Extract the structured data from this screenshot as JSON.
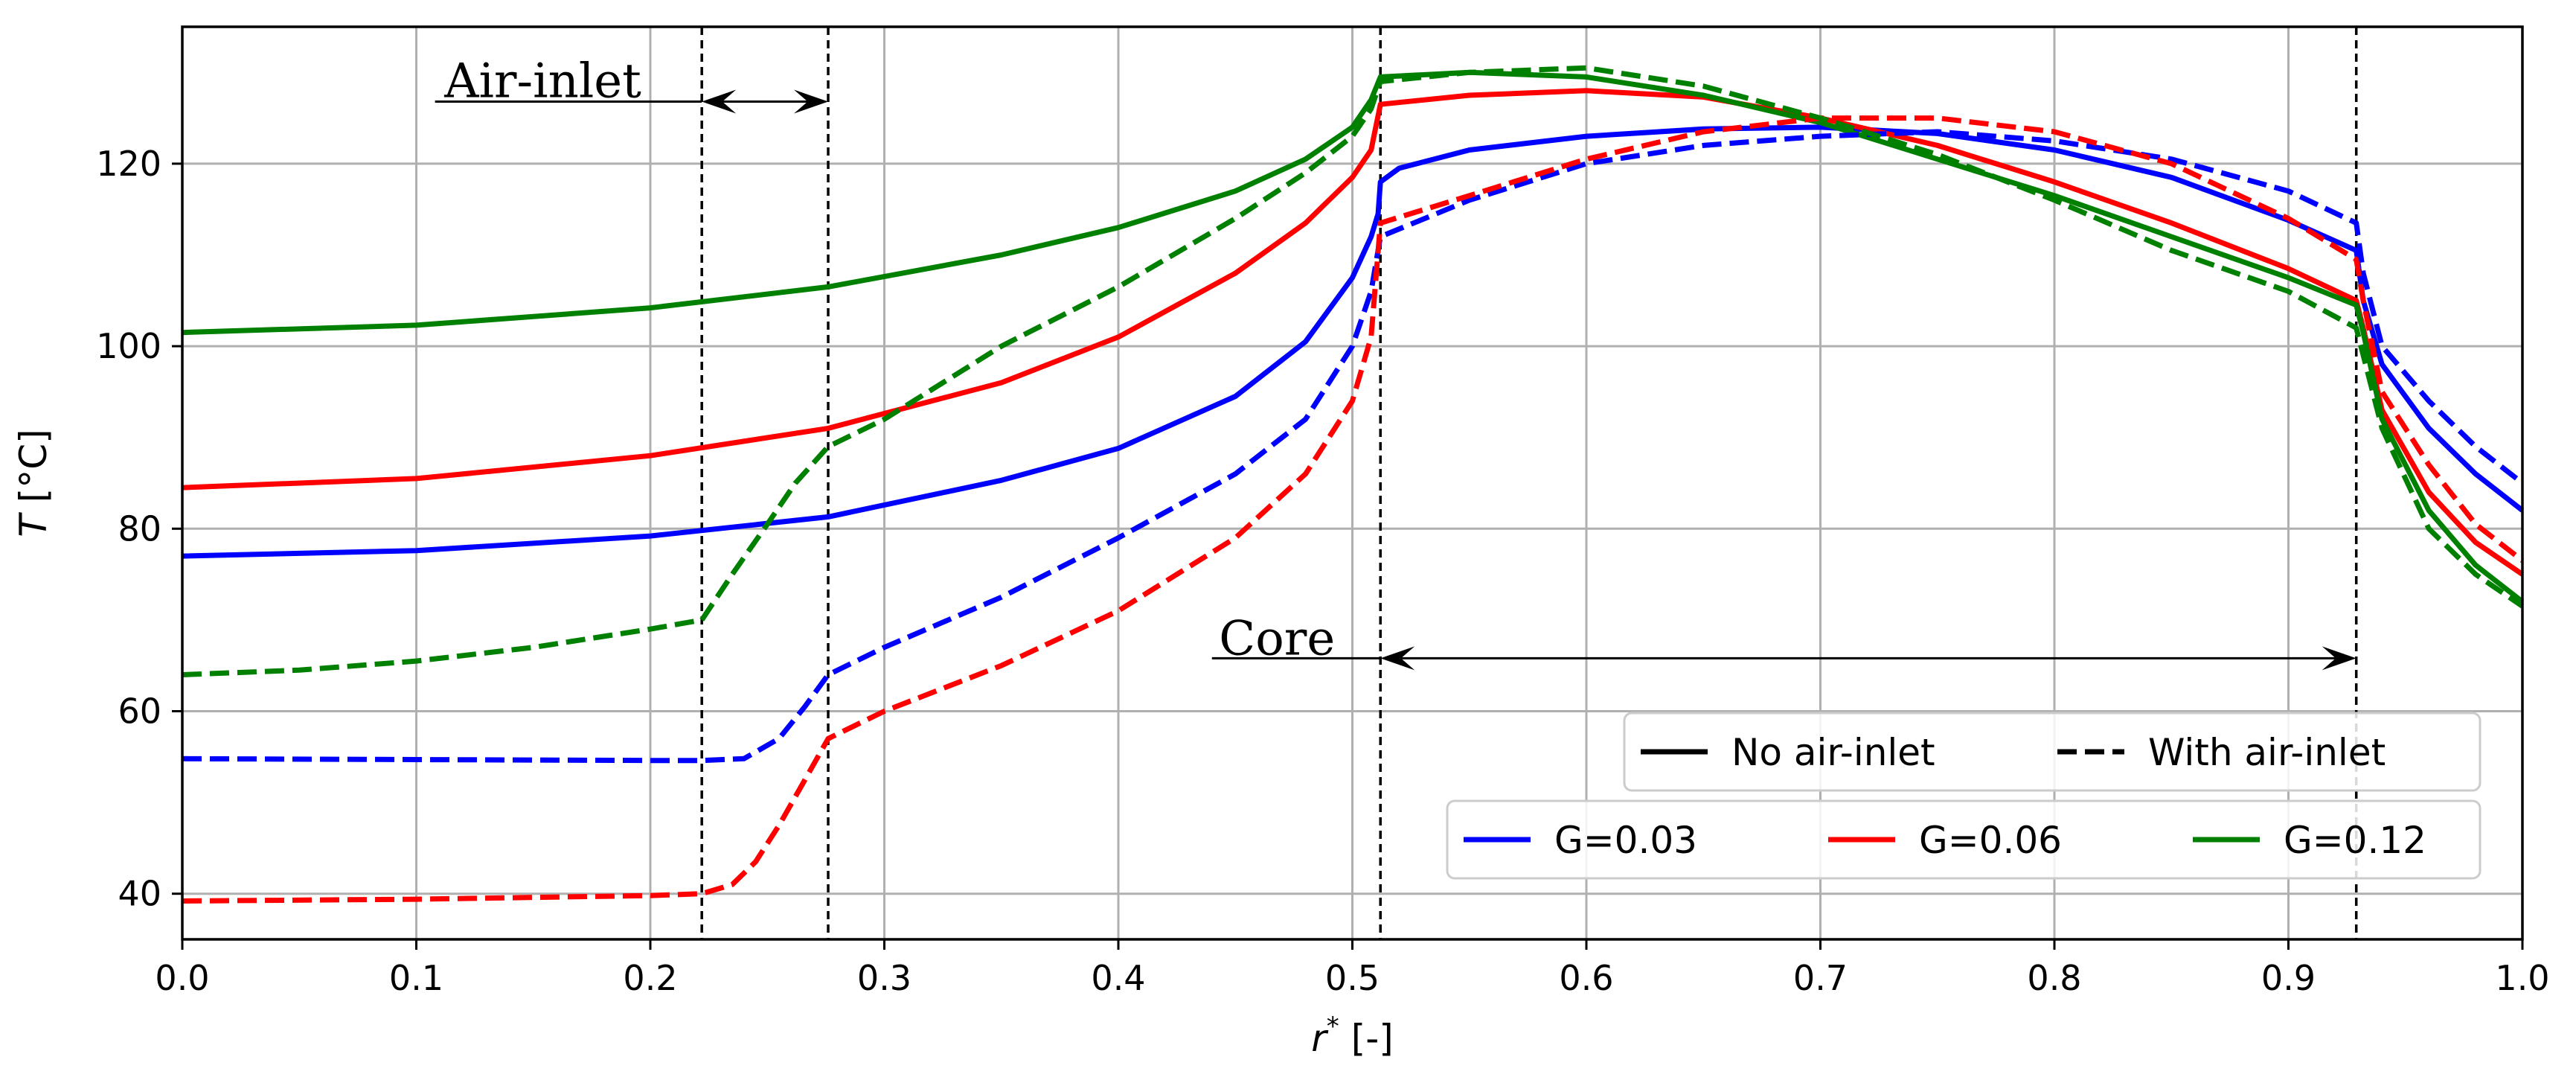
{
  "chart_data": {
    "type": "line",
    "title": "",
    "xlabel_var": "r",
    "xlabel_sup": "*",
    "xlabel_unit": " [-]",
    "ylabel_var": "T",
    "ylabel_unit": " [°C]",
    "xlim": [
      0.0,
      1.0
    ],
    "ylim": [
      35,
      135
    ],
    "grid": true,
    "x_ticks": [
      0.0,
      0.1,
      0.2,
      0.3,
      0.4,
      0.5,
      0.6,
      0.7,
      0.8,
      0.9,
      1.0
    ],
    "x_tick_labels": [
      "0.0",
      "0.1",
      "0.2",
      "0.3",
      "0.4",
      "0.5",
      "0.6",
      "0.7",
      "0.8",
      "0.9",
      "1.0"
    ],
    "y_ticks": [
      40,
      60,
      80,
      100,
      120
    ],
    "y_tick_labels": [
      "40",
      "60",
      "80",
      "100",
      "120"
    ],
    "boundaries": [
      0.222,
      0.276,
      0.512,
      0.929
    ],
    "annotations": [
      {
        "text": "Air-inlet",
        "text_x": 0.112,
        "text_y": 127.3,
        "underline_from": 0.108,
        "arrow_from": 0.222,
        "arrow_to": 0.276,
        "arrow_y": 126.8
      },
      {
        "text": "Core",
        "text_x": 0.443,
        "text_y": 66.2,
        "underline_from": 0.44,
        "arrow_from": 0.512,
        "arrow_to": 0.929,
        "arrow_y": 65.8
      }
    ],
    "legend_style": {
      "placement": "lower-right",
      "entries": [
        {
          "label": "No air-inlet",
          "color": "#000000",
          "dash": "solid"
        },
        {
          "label": "With air-inlet",
          "color": "#000000",
          "dash": "dashed"
        }
      ]
    },
    "legend_color": {
      "placement": "lower-right",
      "entries": [
        {
          "label": "G=0.03",
          "color": "#0000ff",
          "dash": "solid"
        },
        {
          "label": "G=0.06",
          "color": "#ff0000",
          "dash": "solid"
        },
        {
          "label": "G=0.12",
          "color": "#008000",
          "dash": "solid"
        }
      ]
    },
    "series": [
      {
        "name": "G=0.03 No air-inlet",
        "color": "#0000ff",
        "dash": "solid",
        "x": [
          0.0,
          0.1,
          0.2,
          0.276,
          0.35,
          0.4,
          0.45,
          0.48,
          0.5,
          0.508,
          0.511,
          0.512,
          0.52,
          0.55,
          0.6,
          0.65,
          0.7,
          0.75,
          0.8,
          0.85,
          0.9,
          0.929,
          0.932,
          0.94,
          0.96,
          0.98,
          1.0
        ],
        "y": [
          77,
          77.6,
          79.2,
          81.3,
          85.3,
          88.8,
          94.5,
          100.5,
          107.5,
          112,
          114.5,
          118,
          119.5,
          121.5,
          123,
          123.8,
          124,
          123.3,
          121.5,
          118.5,
          113.8,
          110.5,
          105,
          98,
          91,
          86,
          82
        ]
      },
      {
        "name": "G=0.06 No air-inlet",
        "color": "#ff0000",
        "dash": "solid",
        "x": [
          0.0,
          0.1,
          0.2,
          0.276,
          0.35,
          0.4,
          0.45,
          0.48,
          0.5,
          0.508,
          0.512,
          0.55,
          0.6,
          0.65,
          0.7,
          0.75,
          0.8,
          0.85,
          0.9,
          0.929,
          0.932,
          0.94,
          0.96,
          0.98,
          1.0
        ],
        "y": [
          84.5,
          85.5,
          88,
          91,
          96,
          101,
          108,
          113.5,
          118.5,
          121.5,
          126.5,
          127.5,
          128,
          127.3,
          125,
          122,
          118,
          113.5,
          108.5,
          105,
          102,
          93,
          84,
          78.5,
          75
        ]
      },
      {
        "name": "G=0.12 No air-inlet",
        "color": "#008000",
        "dash": "solid",
        "x": [
          0.0,
          0.1,
          0.2,
          0.276,
          0.35,
          0.4,
          0.45,
          0.48,
          0.5,
          0.508,
          0.512,
          0.55,
          0.6,
          0.65,
          0.7,
          0.75,
          0.8,
          0.85,
          0.9,
          0.929,
          0.932,
          0.94,
          0.96,
          0.98,
          1.0
        ],
        "y": [
          101.5,
          102.3,
          104.2,
          106.5,
          110,
          113,
          117,
          120.5,
          124,
          127,
          129.5,
          130,
          129.5,
          127.5,
          124.5,
          120.5,
          116.5,
          112,
          107.5,
          104.5,
          101.5,
          92,
          82,
          76,
          72
        ]
      },
      {
        "name": "G=0.03 With air-inlet",
        "color": "#0000ff",
        "dash": "dashed",
        "x": [
          0.0,
          0.1,
          0.2,
          0.222,
          0.24,
          0.255,
          0.266,
          0.276,
          0.3,
          0.35,
          0.4,
          0.45,
          0.48,
          0.5,
          0.508,
          0.512,
          0.55,
          0.6,
          0.65,
          0.7,
          0.75,
          0.8,
          0.85,
          0.9,
          0.929,
          0.932,
          0.94,
          0.96,
          0.98,
          1.0
        ],
        "y": [
          54.8,
          54.7,
          54.6,
          54.6,
          54.8,
          57,
          60.5,
          64,
          67,
          72.5,
          79,
          86,
          92,
          100,
          106,
          112,
          116,
          120,
          122,
          123,
          123.5,
          122.5,
          120.5,
          117,
          113.5,
          108,
          100,
          94,
          89,
          85
        ]
      },
      {
        "name": "G=0.06 With air-inlet",
        "color": "#ff0000",
        "dash": "dashed",
        "x": [
          0.0,
          0.1,
          0.2,
          0.222,
          0.235,
          0.245,
          0.255,
          0.265,
          0.276,
          0.3,
          0.35,
          0.4,
          0.45,
          0.48,
          0.5,
          0.508,
          0.512,
          0.55,
          0.6,
          0.65,
          0.7,
          0.75,
          0.8,
          0.85,
          0.9,
          0.929,
          0.932,
          0.94,
          0.96,
          0.98,
          1.0
        ],
        "y": [
          39.2,
          39.4,
          39.8,
          40,
          41,
          43.5,
          47.5,
          52,
          57,
          60,
          65,
          71,
          79,
          86,
          94,
          101,
          113.5,
          116.5,
          120.5,
          123.5,
          125,
          125,
          123.5,
          120,
          114,
          109.5,
          105,
          95,
          87,
          80.5,
          76.5
        ]
      },
      {
        "name": "G=0.12 With air-inlet",
        "color": "#008000",
        "dash": "dashed",
        "x": [
          0.0,
          0.05,
          0.1,
          0.15,
          0.2,
          0.222,
          0.235,
          0.25,
          0.262,
          0.276,
          0.3,
          0.35,
          0.4,
          0.45,
          0.48,
          0.5,
          0.508,
          0.512,
          0.55,
          0.6,
          0.65,
          0.7,
          0.75,
          0.8,
          0.85,
          0.9,
          0.929,
          0.932,
          0.94,
          0.96,
          0.98,
          1.0
        ],
        "y": [
          64,
          64.5,
          65.5,
          67,
          69,
          70,
          75,
          80.5,
          85,
          89,
          92,
          100,
          106.5,
          114,
          119,
          123,
          126,
          129,
          130,
          130.5,
          128.5,
          125,
          121,
          116,
          110.5,
          106,
          102,
          99,
          91,
          80,
          75,
          71.5
        ]
      }
    ]
  }
}
